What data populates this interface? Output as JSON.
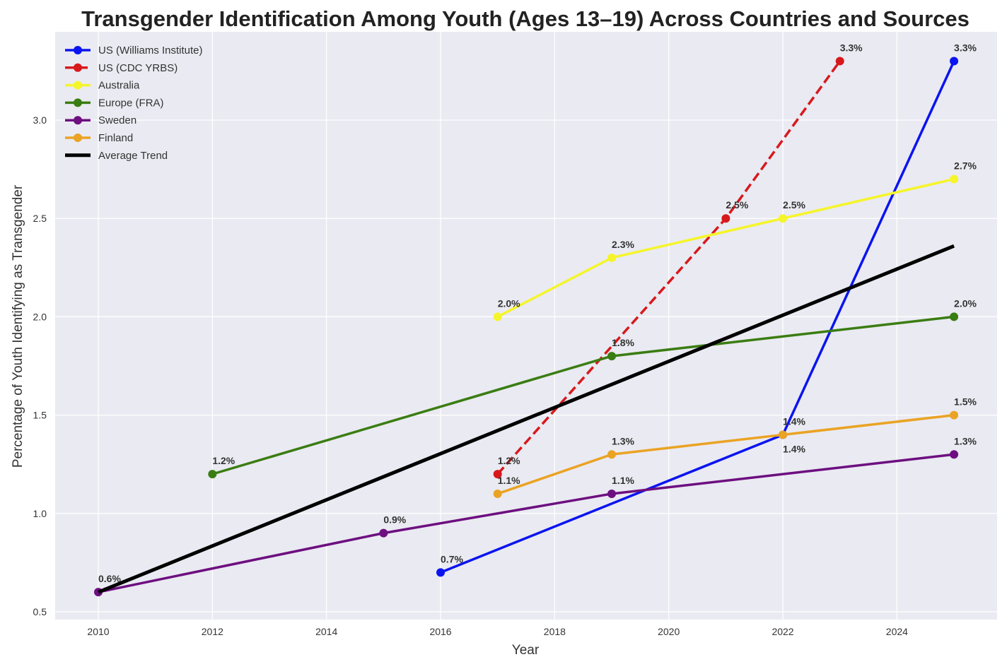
{
  "chart_data": {
    "type": "line",
    "title": "Transgender Identification Among Youth (Ages 13–19) Across Countries and Sources",
    "xlabel": "Year",
    "ylabel": "Percentage of Youth Identifying as Transgender",
    "xlim": [
      2009.2,
      2025.7
    ],
    "ylim": [
      0.47,
      3.45
    ],
    "xticks": [
      2010,
      2012,
      2014,
      2016,
      2018,
      2020,
      2022,
      2024
    ],
    "yticks": [
      "0.5",
      "1.0",
      "1.5",
      "2.0",
      "2.5",
      "3.0"
    ],
    "grid": true,
    "legend_position": "top-left",
    "series": [
      {
        "name": "US (Williams Institute)",
        "color": "#0a14f0",
        "dashed": false,
        "markers": true,
        "x": [
          2016,
          2022,
          2025
        ],
        "y": [
          0.7,
          1.4,
          3.3
        ],
        "labels": [
          "0.7%",
          "1.4%",
          "3.3%"
        ]
      },
      {
        "name": "US (CDC YRBS)",
        "color": "#d7191c",
        "dashed": true,
        "markers": true,
        "x": [
          2017,
          2021,
          2023
        ],
        "y": [
          1.2,
          2.5,
          3.3
        ],
        "labels": [
          "1.2%",
          "2.5%",
          "3.3%"
        ]
      },
      {
        "name": "Australia",
        "color": "#f5f52a",
        "dashed": false,
        "markers": true,
        "x": [
          2017,
          2019,
          2022,
          2025
        ],
        "y": [
          2.0,
          2.3,
          2.5,
          2.7
        ],
        "labels": [
          "2.0%",
          "2.3%",
          "2.5%",
          "2.7%"
        ]
      },
      {
        "name": "Europe (FRA)",
        "color": "#3a7d12",
        "dashed": false,
        "markers": true,
        "x": [
          2012,
          2019,
          2025
        ],
        "y": [
          1.2,
          1.8,
          2.0
        ],
        "labels": [
          "1.2%",
          "1.8%",
          "2.0%"
        ]
      },
      {
        "name": "Sweden",
        "color": "#6d0f80",
        "dashed": false,
        "markers": true,
        "x": [
          2010,
          2015,
          2019,
          2025
        ],
        "y": [
          0.6,
          0.9,
          1.1,
          1.3
        ],
        "labels": [
          "0.6%",
          "0.9%",
          "1.1%",
          "1.3%"
        ]
      },
      {
        "name": "Finland",
        "color": "#eaa323",
        "dashed": false,
        "markers": true,
        "x": [
          2017,
          2019,
          2022,
          2025
        ],
        "y": [
          1.1,
          1.3,
          1.4,
          1.5
        ],
        "labels": [
          "1.1%",
          "1.3%",
          "1.4%",
          "1.5%"
        ]
      },
      {
        "name": "Average Trend",
        "color": "#000000",
        "dashed": false,
        "markers": false,
        "x": [
          2010,
          2025
        ],
        "y": [
          0.6,
          2.36
        ],
        "labels": []
      }
    ]
  }
}
